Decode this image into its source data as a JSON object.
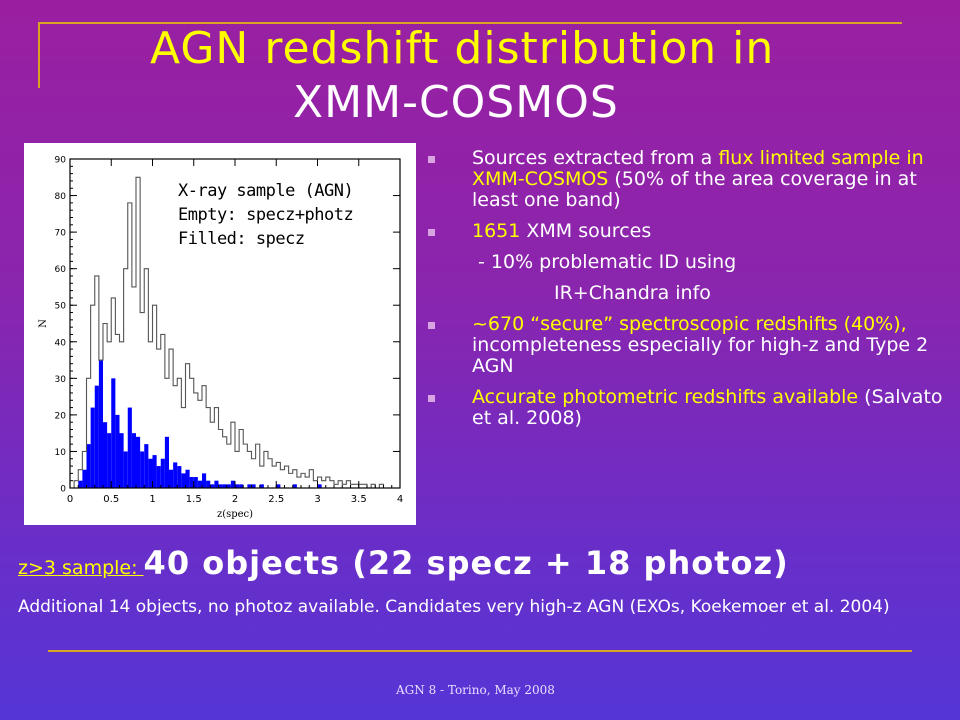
{
  "slide": {
    "title_line1": "AGN  redshift distribution in",
    "title_line2": "XMM-COSMOS",
    "legend": [
      "X-ray sample (AGN)",
      "Empty: specz+photz",
      "Filled: specz"
    ],
    "bullets": {
      "b1_pre": "Sources extracted from a ",
      "b1_hl": "flux limited sample in XMM-COSMOS",
      "b1_post": " (50% of the area coverage in at least one band)",
      "b2_hl": "1651",
      "b2_post": " XMM sources",
      "sub1": "- 10% problematic ID using",
      "sub2": "IR+Chandra info",
      "b3_hl": "~670 “secure” spectroscopic redshifts (40%),",
      "b3_post": " incompleteness especially for high-z  and Type 2 AGN",
      "b4_hl": "Accurate photometric redshifts available",
      "b4_post": " (Salvato et al. 2008)"
    },
    "z_label": "z>3 sample: ",
    "z_big": "40 objects (22 specz + 18 photoz)",
    "additional": "Additional 14 objects, no photoz available. Candidates very high-z AGN (EXOs, Koekemoer et al. 2004)",
    "footer": "AGN 8 - Torino, May 2008",
    "colors": {
      "title": "#ffff00",
      "highlight": "#ffff00",
      "filled_bars": "#0000ff",
      "rule": "#d9a520"
    }
  },
  "chart_data": {
    "type": "bar",
    "xlabel": "z(spec)",
    "ylabel": "N",
    "xlim": [
      0,
      4
    ],
    "ylim": [
      0,
      90
    ],
    "x_ticks": [
      "0",
      "0.5",
      "1",
      "1.5",
      "2",
      "2.5",
      "3",
      "3.5",
      "4"
    ],
    "y_ticks": [
      "0",
      "10",
      "20",
      "30",
      "40",
      "50",
      "60",
      "70",
      "80",
      "90"
    ],
    "bin_width": 0.05,
    "series": [
      {
        "name": "Empty: specz+photz",
        "style": "outline",
        "values": [
          0,
          2,
          5,
          10,
          30,
          50,
          58,
          35,
          45,
          40,
          52,
          42,
          40,
          60,
          78,
          55,
          85,
          48,
          60,
          40,
          50,
          38,
          42,
          30,
          38,
          28,
          30,
          22,
          34,
          30,
          26,
          24,
          28,
          22,
          18,
          22,
          16,
          14,
          12,
          18,
          10,
          16,
          12,
          10,
          8,
          12,
          6,
          10,
          8,
          6,
          7,
          5,
          6,
          4,
          5,
          3,
          4,
          3,
          5,
          2,
          3,
          2,
          3,
          2,
          1,
          2,
          1,
          2,
          1,
          1,
          1,
          1,
          0,
          1,
          0,
          1,
          0,
          0,
          0,
          0
        ]
      },
      {
        "name": "Filled: specz",
        "style": "filled",
        "values": [
          0,
          0,
          2,
          5,
          12,
          22,
          28,
          35,
          18,
          15,
          30,
          20,
          15,
          10,
          22,
          15,
          14,
          10,
          12,
          8,
          9,
          6,
          8,
          14,
          5,
          7,
          6,
          4,
          5,
          3,
          3,
          2,
          4,
          2,
          1,
          2,
          1,
          1,
          1,
          2,
          1,
          1,
          0,
          1,
          1,
          0,
          1,
          0,
          0,
          0,
          1,
          0,
          0,
          0,
          1,
          0,
          0,
          0,
          0,
          0,
          1,
          0,
          0,
          0,
          0,
          0,
          0,
          0,
          0,
          0,
          0,
          0,
          0,
          0,
          0,
          0,
          0,
          0,
          0,
          0
        ]
      }
    ],
    "grid": false
  }
}
